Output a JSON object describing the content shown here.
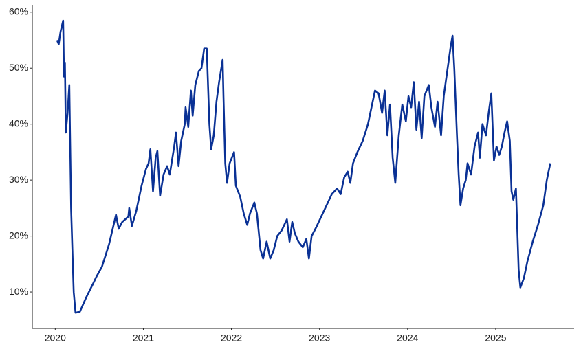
{
  "chart_data": {
    "type": "line",
    "color": "#0a3195",
    "x": [
      2020.02,
      2020.04,
      2020.06,
      2020.09,
      2020.1,
      2020.11,
      2020.12,
      2020.14,
      2020.16,
      2020.18,
      2020.2,
      2020.21,
      2020.23,
      2020.28,
      2020.35,
      2020.43,
      2020.47,
      2020.53,
      2020.61,
      2020.69,
      2020.72,
      2020.76,
      2020.83,
      2020.84,
      2020.87,
      2020.92,
      2020.98,
      2021.03,
      2021.06,
      2021.08,
      2021.11,
      2021.14,
      2021.16,
      2021.19,
      2021.23,
      2021.27,
      2021.3,
      2021.35,
      2021.37,
      2021.4,
      2021.43,
      2021.47,
      2021.48,
      2021.51,
      2021.54,
      2021.56,
      2021.59,
      2021.63,
      2021.66,
      2021.69,
      2021.72,
      2021.75,
      2021.77,
      2021.8,
      2021.83,
      2021.86,
      2021.9,
      2021.91,
      2021.93,
      2021.95,
      2021.98,
      2022.03,
      2022.05,
      2022.1,
      2022.14,
      2022.18,
      2022.21,
      2022.26,
      2022.29,
      2022.33,
      2022.36,
      2022.4,
      2022.44,
      2022.48,
      2022.52,
      2022.57,
      2022.63,
      2022.66,
      2022.69,
      2022.72,
      2022.76,
      2022.81,
      2022.85,
      2022.88,
      2022.91,
      2022.96,
      2023.02,
      2023.08,
      2023.14,
      2023.2,
      2023.24,
      2023.28,
      2023.32,
      2023.35,
      2023.38,
      2023.43,
      2023.49,
      2023.55,
      2023.59,
      2023.63,
      2023.67,
      2023.71,
      2023.74,
      2023.77,
      2023.8,
      2023.83,
      2023.86,
      2023.9,
      2023.94,
      2023.98,
      2024.01,
      2024.04,
      2024.07,
      2024.1,
      2024.13,
      2024.16,
      2024.19,
      2024.24,
      2024.27,
      2024.31,
      2024.34,
      2024.38,
      2024.41,
      2024.45,
      2024.49,
      2024.51,
      2024.53,
      2024.56,
      2024.58,
      2024.6,
      2024.63,
      2024.66,
      2024.68,
      2024.72,
      2024.76,
      2024.8,
      2024.82,
      2024.85,
      2024.89,
      2024.92,
      2024.95,
      2024.98,
      2025.01,
      2025.04,
      2025.07,
      2025.1,
      2025.13,
      2025.16,
      2025.18,
      2025.2,
      2025.23,
      2025.26,
      2025.28,
      2025.32,
      2025.36,
      2025.42,
      2025.48,
      2025.54,
      2025.58,
      2025.6,
      2025.62
    ],
    "values": [
      55,
      54.3,
      56.5,
      58.5,
      48.5,
      51,
      38.5,
      42,
      47,
      25,
      15,
      10,
      6.3,
      6.5,
      9,
      11.5,
      12.8,
      14.5,
      18.5,
      23.8,
      21.3,
      22.5,
      23.5,
      25,
      21.8,
      24.5,
      29,
      32,
      33,
      35.5,
      28,
      34,
      35.2,
      27.2,
      31,
      32.5,
      31,
      36,
      38.5,
      32.5,
      37,
      40,
      43,
      39.5,
      46,
      41.5,
      47,
      49.5,
      50,
      53.5,
      53.5,
      40,
      35.5,
      38,
      44,
      47.5,
      51.5,
      45,
      33,
      29.5,
      33,
      35,
      29,
      27,
      24,
      22,
      24,
      26,
      24,
      17.5,
      16,
      19,
      16,
      17.5,
      20,
      21,
      23,
      19,
      22.5,
      20.5,
      19,
      18,
      19.5,
      16,
      20,
      21.5,
      23.5,
      25.5,
      27.5,
      28.5,
      27.5,
      30.5,
      31.5,
      29.5,
      33,
      35,
      37,
      40,
      43,
      46,
      45.5,
      42,
      46,
      38,
      43.5,
      34,
      29.5,
      38,
      43.5,
      40.5,
      45,
      43,
      47.5,
      39,
      44,
      37.5,
      45,
      47,
      43,
      39.5,
      44,
      38,
      45,
      49.5,
      54,
      55.8,
      50,
      38,
      31,
      25.5,
      28.5,
      30,
      33,
      31,
      36,
      38.5,
      34,
      40,
      38,
      42,
      45.5,
      33.5,
      36,
      34.5,
      36,
      38.5,
      40.5,
      37,
      28,
      26.5,
      28.5,
      14,
      10.8,
      12.5,
      15.5,
      19,
      22,
      25.5,
      30,
      31.5,
      33
    ],
    "xlim": [
      2019.74,
      2025.89
    ],
    "xticks": [
      2020,
      2021,
      2022,
      2023,
      2024,
      2025
    ],
    "ylim": [
      3.5,
      61.2
    ],
    "yticks": [
      {
        "value": 10,
        "label": "10%"
      },
      {
        "value": 20,
        "label": "20%"
      },
      {
        "value": 30,
        "label": "30%"
      },
      {
        "value": 40,
        "label": "40%"
      },
      {
        "value": 50,
        "label": "50%"
      },
      {
        "value": 60,
        "label": "60%"
      }
    ]
  }
}
